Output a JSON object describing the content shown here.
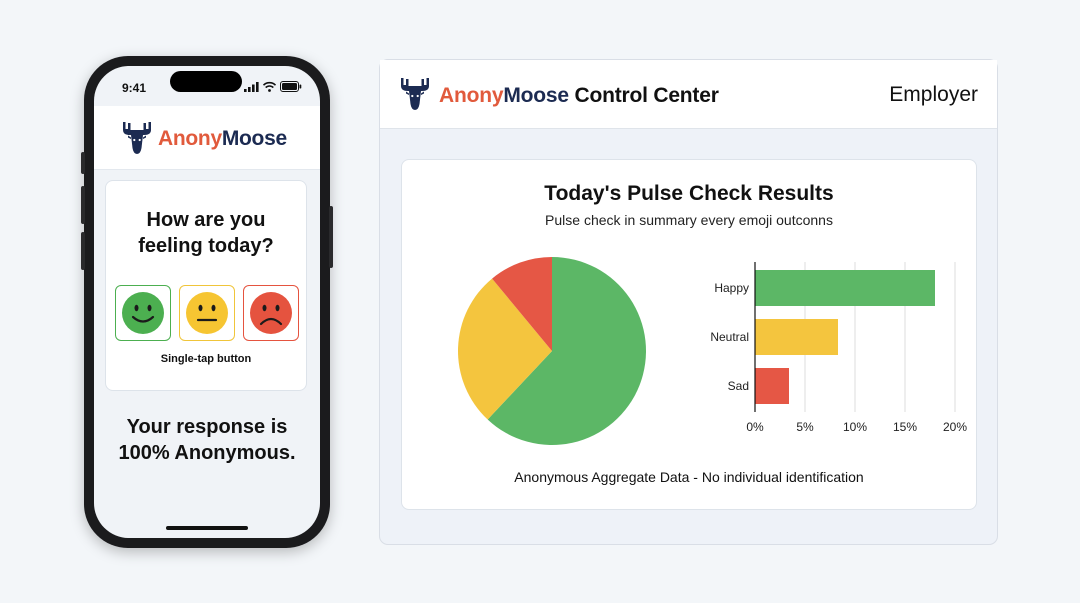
{
  "phone": {
    "status_time": "9:41",
    "brand_part1": "Anony",
    "brand_part2": "Moose",
    "question_line1": "How are you",
    "question_line2": "feeling today?",
    "tap_caption": "Single-tap button",
    "anon_line1": "Your response is",
    "anon_line2": "100% Anonymous.",
    "emoji_buttons": [
      {
        "icon": "happy-face-icon",
        "color": "#4caf50",
        "border": "#4caf50"
      },
      {
        "icon": "neutral-face-icon",
        "color": "#f6c532",
        "border": "#f0c53a"
      },
      {
        "icon": "sad-face-icon",
        "color": "#e5533f",
        "border": "#e5533f"
      }
    ]
  },
  "dashboard": {
    "title_part1": "Anony",
    "title_part2": "Moose",
    "title_part3": " Control Center",
    "role": "Employer",
    "results": {
      "title": "Today's Pulse Check Results",
      "subtitle": "Pulse check in summary  every emoji outconns",
      "footer": "Anonymous Aggregate Data - No individual identification"
    }
  },
  "colors": {
    "brand_red": "#e15a3c",
    "brand_navy": "#1c2b52",
    "happy": "#5cb766",
    "neutral": "#f4c53e",
    "sad": "#e55745"
  },
  "chart_data": [
    {
      "type": "pie",
      "categories": [
        "Happy",
        "Neutral",
        "Sad"
      ],
      "values": [
        62,
        27,
        11
      ],
      "colors": [
        "#5cb766",
        "#f4c53e",
        "#e55745"
      ]
    },
    {
      "type": "bar",
      "orientation": "horizontal",
      "categories": [
        "Happy",
        "Neutral",
        "Sad"
      ],
      "values": [
        18,
        8.3,
        3.4
      ],
      "colors": [
        "#5cb766",
        "#f4c53e",
        "#e55745"
      ],
      "xticks": [
        "0%",
        "5%",
        "10%",
        "15%",
        "20%"
      ],
      "xlim": [
        0,
        20
      ],
      "grid": true
    }
  ]
}
